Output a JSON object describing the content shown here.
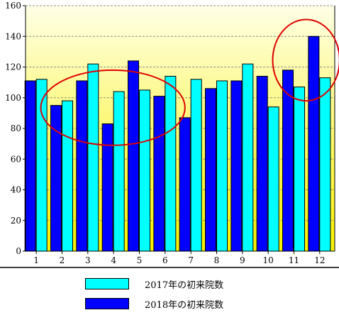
{
  "chart_data": {
    "type": "bar",
    "categories": [
      "1",
      "2",
      "3",
      "4",
      "5",
      "6",
      "7",
      "8",
      "9",
      "10",
      "11",
      "12"
    ],
    "series": [
      {
        "name": "2017年の初来院数",
        "color": "#00ffff",
        "values": [
          112,
          98,
          122,
          104,
          105,
          114,
          112,
          111,
          122,
          94,
          107,
          113
        ]
      },
      {
        "name": "2018年の初来院数",
        "color": "#0000ff",
        "values": [
          111,
          95,
          111,
          83,
          124,
          101,
          87,
          106,
          111,
          114,
          118,
          140
        ]
      }
    ],
    "yticks": [
      "0",
      "20",
      "40",
      "60",
      "80",
      "100",
      "120",
      "140",
      "160"
    ],
    "ylim": [
      0,
      160
    ],
    "grid": true,
    "legend_position": "bottom",
    "background_gradient": [
      "#ffffe6",
      "#f7f000"
    ],
    "annotations": [
      {
        "shape": "ellipse",
        "color": "#e00000",
        "categories": [
          "2",
          "6"
        ],
        "y_range": [
          69,
          118
        ]
      },
      {
        "shape": "ellipse",
        "color": "#e00000",
        "categories": [
          "11",
          "12"
        ],
        "y_range": [
          98,
          151
        ]
      }
    ]
  }
}
